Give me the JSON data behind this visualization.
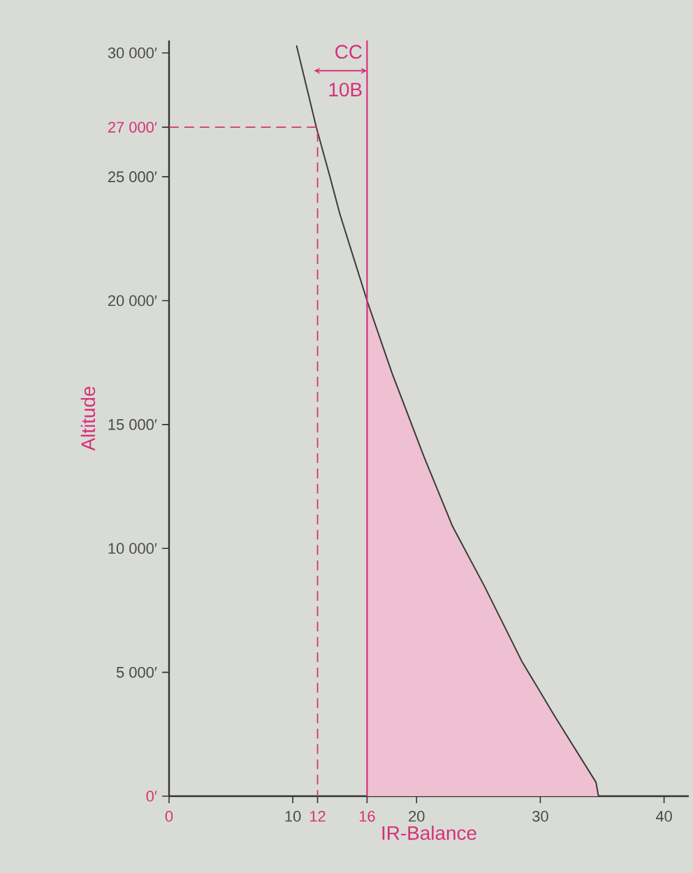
{
  "chart_data": {
    "type": "line",
    "xlabel": "IR-Balance",
    "ylabel": "Altitude",
    "xlim": [
      0,
      42
    ],
    "ylim": [
      0,
      30500
    ],
    "xticks": [
      0,
      10,
      12,
      16,
      20,
      30,
      40
    ],
    "yticks": [
      {
        "value": 0,
        "label": "0′"
      },
      {
        "value": 5000,
        "label": "5 000′"
      },
      {
        "value": 10000,
        "label": "10 000′"
      },
      {
        "value": 15000,
        "label": "15 000′"
      },
      {
        "value": 20000,
        "label": "20 000′"
      },
      {
        "value": 25000,
        "label": "25 000′"
      },
      {
        "value": 27000,
        "label": "27 000′"
      },
      {
        "value": 30000,
        "label": "30 000′"
      }
    ],
    "marker": "none",
    "series": [
      {
        "color": "#3a3a3a",
        "x": [
          10.3,
          11.9,
          13.0,
          13.8,
          16,
          18.0,
          20.6,
          22.9,
          25.5,
          28.5,
          31.2,
          34.5,
          34.7
        ],
        "values": [
          30300,
          27000,
          25000,
          23500,
          20000,
          17100,
          13700,
          10900,
          8460,
          5450,
          3200,
          560,
          0
        ]
      },
      {
        "type": "area",
        "color": "#eec0d1",
        "x": [
          16,
          18.0,
          20.6,
          22.9,
          25.5,
          28.5,
          31.2,
          34.5,
          34.7
        ],
        "values": [
          20000,
          17100,
          13700,
          10900,
          8460,
          5450,
          3200,
          560,
          0
        ]
      },
      {
        "type": "line",
        "line_style": "dashed",
        "color": "#d6317a",
        "x": [
          0,
          12,
          12
        ],
        "values": [
          27000,
          27000,
          0
        ]
      }
    ],
    "ref_lines": [
      {
        "axis": "x",
        "value": 16,
        "color": "#d6317a"
      }
    ],
    "annotations": [
      "CC",
      "10B"
    ]
  }
}
